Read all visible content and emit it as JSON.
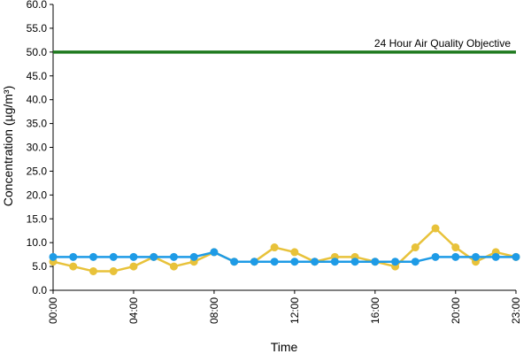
{
  "chart_data": {
    "type": "line",
    "title": "",
    "xlabel": "Time",
    "ylabel": "Concentration (µg/m³)",
    "ylim": [
      0,
      60
    ],
    "yticks": [
      "0.0",
      "5.0",
      "10.0",
      "15.0",
      "20.0",
      "25.0",
      "30.0",
      "35.0",
      "40.0",
      "45.0",
      "50.0",
      "55.0",
      "60.0"
    ],
    "x": [
      "00:00",
      "01:00",
      "02:00",
      "03:00",
      "04:00",
      "05:00",
      "06:00",
      "07:00",
      "08:00",
      "09:00",
      "10:00",
      "11:00",
      "12:00",
      "13:00",
      "14:00",
      "15:00",
      "16:00",
      "17:00",
      "18:00",
      "19:00",
      "20:00",
      "21:00",
      "22:00",
      "23:00"
    ],
    "xtick_labels": [
      "00:00",
      "04:00",
      "08:00",
      "12:00",
      "16:00",
      "20:00",
      "23:00"
    ],
    "xtick_indices": [
      0,
      4,
      8,
      12,
      16,
      20,
      23
    ],
    "grid": false,
    "series": [
      {
        "color": "#e8c23a",
        "values": [
          6,
          5,
          4,
          4,
          5,
          7,
          5,
          6,
          8,
          6,
          6,
          9,
          8,
          6,
          7,
          7,
          6,
          5,
          9,
          13,
          9,
          6,
          8,
          7
        ]
      },
      {
        "color": "#1e9be6",
        "values": [
          7,
          7,
          7,
          7,
          7,
          7,
          7,
          7,
          8,
          6,
          6,
          6,
          6,
          6,
          6,
          6,
          6,
          6,
          6,
          7,
          7,
          7,
          7,
          7
        ]
      }
    ],
    "reference_line": {
      "value": 50,
      "label": "24 Hour Air Quality Objective",
      "color": "#1f7a1f"
    }
  }
}
